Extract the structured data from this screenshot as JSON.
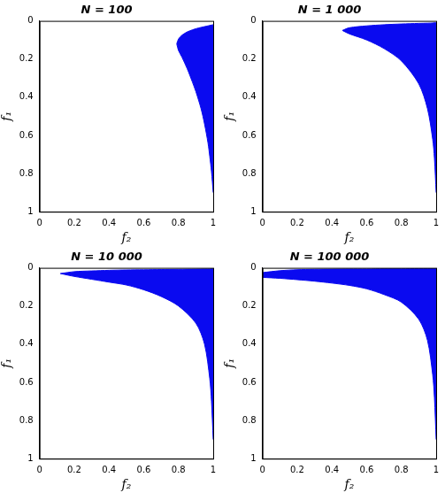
{
  "chart_data": [
    {
      "type": "area",
      "title": "N = 100",
      "x_label": "f₂",
      "y_label": "f₁",
      "color": "#0a0af0",
      "grid": false,
      "xlim": [
        0,
        1
      ],
      "ylim": [
        0,
        1
      ],
      "xticks": [
        0,
        0.2,
        0.4,
        0.6,
        0.8,
        1
      ],
      "yticks": [
        0,
        0.2,
        0.4,
        0.6,
        0.8,
        1
      ],
      "x": [
        0.79,
        0.8,
        0.82,
        0.85,
        0.88,
        0.9,
        0.93,
        0.95,
        0.97,
        0.98,
        0.99,
        1
      ],
      "lower": [
        0.12,
        0.095,
        0.075,
        0.058,
        0.047,
        0.041,
        0.034,
        0.03,
        0.026,
        0.024,
        0.022,
        0.02
      ],
      "upper": [
        0.12,
        0.155,
        0.19,
        0.25,
        0.32,
        0.37,
        0.46,
        0.54,
        0.64,
        0.71,
        0.79,
        0.9
      ]
    },
    {
      "type": "area",
      "title": "N = 1 000",
      "x_label": "f₂",
      "y_label": "f₁",
      "color": "#0a0af0",
      "grid": false,
      "xlim": [
        0,
        1
      ],
      "ylim": [
        0,
        1
      ],
      "xticks": [
        0,
        0.2,
        0.4,
        0.6,
        0.8,
        1
      ],
      "yticks": [
        0,
        0.2,
        0.4,
        0.6,
        0.8,
        1
      ],
      "x": [
        0.46,
        0.5,
        0.6,
        0.7,
        0.8,
        0.9,
        0.95,
        0.98,
        0.99,
        1
      ],
      "lower": [
        0.05,
        0.036,
        0.026,
        0.02,
        0.016,
        0.013,
        0.012,
        0.011,
        0.01,
        0.01
      ],
      "upper": [
        0.05,
        0.068,
        0.1,
        0.145,
        0.21,
        0.33,
        0.46,
        0.62,
        0.72,
        0.9
      ]
    },
    {
      "type": "area",
      "title": "N = 10 000",
      "x_label": "f₂",
      "y_label": "f₁",
      "color": "#0a0af0",
      "grid": false,
      "xlim": [
        0,
        1
      ],
      "ylim": [
        0,
        1
      ],
      "xticks": [
        0,
        0.2,
        0.4,
        0.6,
        0.8,
        1
      ],
      "yticks": [
        0,
        0.2,
        0.4,
        0.6,
        0.8,
        1
      ],
      "x": [
        0.12,
        0.2,
        0.3,
        0.4,
        0.5,
        0.6,
        0.7,
        0.8,
        0.9,
        0.95,
        0.98,
        0.99,
        1
      ],
      "lower": [
        0.03,
        0.02,
        0.016,
        0.013,
        0.011,
        0.01,
        0.009,
        0.008,
        0.007,
        0.006,
        0.006,
        0.005,
        0.005
      ],
      "upper": [
        0.03,
        0.045,
        0.06,
        0.075,
        0.09,
        0.115,
        0.15,
        0.2,
        0.29,
        0.4,
        0.58,
        0.7,
        0.9
      ]
    },
    {
      "type": "area",
      "title": "N = 100 000",
      "x_label": "f₂",
      "y_label": "f₁",
      "color": "#0a0af0",
      "grid": false,
      "xlim": [
        0,
        1
      ],
      "ylim": [
        0,
        1
      ],
      "xticks": [
        0,
        0.2,
        0.4,
        0.6,
        0.8,
        1
      ],
      "yticks": [
        0,
        0.2,
        0.4,
        0.6,
        0.8,
        1
      ],
      "x": [
        0,
        0.1,
        0.2,
        0.3,
        0.4,
        0.5,
        0.6,
        0.7,
        0.8,
        0.9,
        0.95,
        0.98,
        0.99,
        1
      ],
      "lower": [
        0.025,
        0.015,
        0.01,
        0.008,
        0.007,
        0.006,
        0.006,
        0.005,
        0.005,
        0.004,
        0.004,
        0.004,
        0.004,
        0.004
      ],
      "upper": [
        0.05,
        0.055,
        0.062,
        0.07,
        0.08,
        0.092,
        0.11,
        0.14,
        0.18,
        0.27,
        0.38,
        0.56,
        0.68,
        0.9
      ]
    }
  ]
}
